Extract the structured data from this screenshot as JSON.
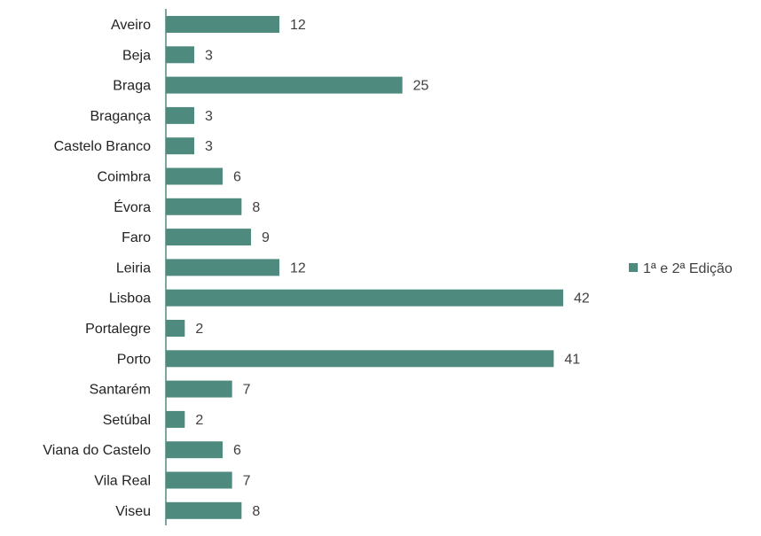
{
  "chart_data": {
    "type": "bar",
    "orientation": "horizontal",
    "categories": [
      "Aveiro",
      "Beja",
      "Braga",
      "Bragança",
      "Castelo Branco",
      "Coimbra",
      "Évora",
      "Faro",
      "Leiria",
      "Lisboa",
      "Portalegre",
      "Porto",
      "Santarém",
      "Setúbal",
      "Viana do Castelo",
      "Vila Real",
      "Viseu"
    ],
    "series": [
      {
        "name": "1ª e 2ª Edição",
        "color": "#4e8b7e",
        "values": [
          12,
          3,
          25,
          3,
          3,
          6,
          8,
          9,
          12,
          42,
          2,
          41,
          7,
          2,
          6,
          7,
          8
        ]
      }
    ],
    "data_labels": true,
    "xlim": [
      0,
      45
    ],
    "grid": false,
    "legend_position": "right",
    "title": "",
    "xlabel": "",
    "ylabel": ""
  }
}
